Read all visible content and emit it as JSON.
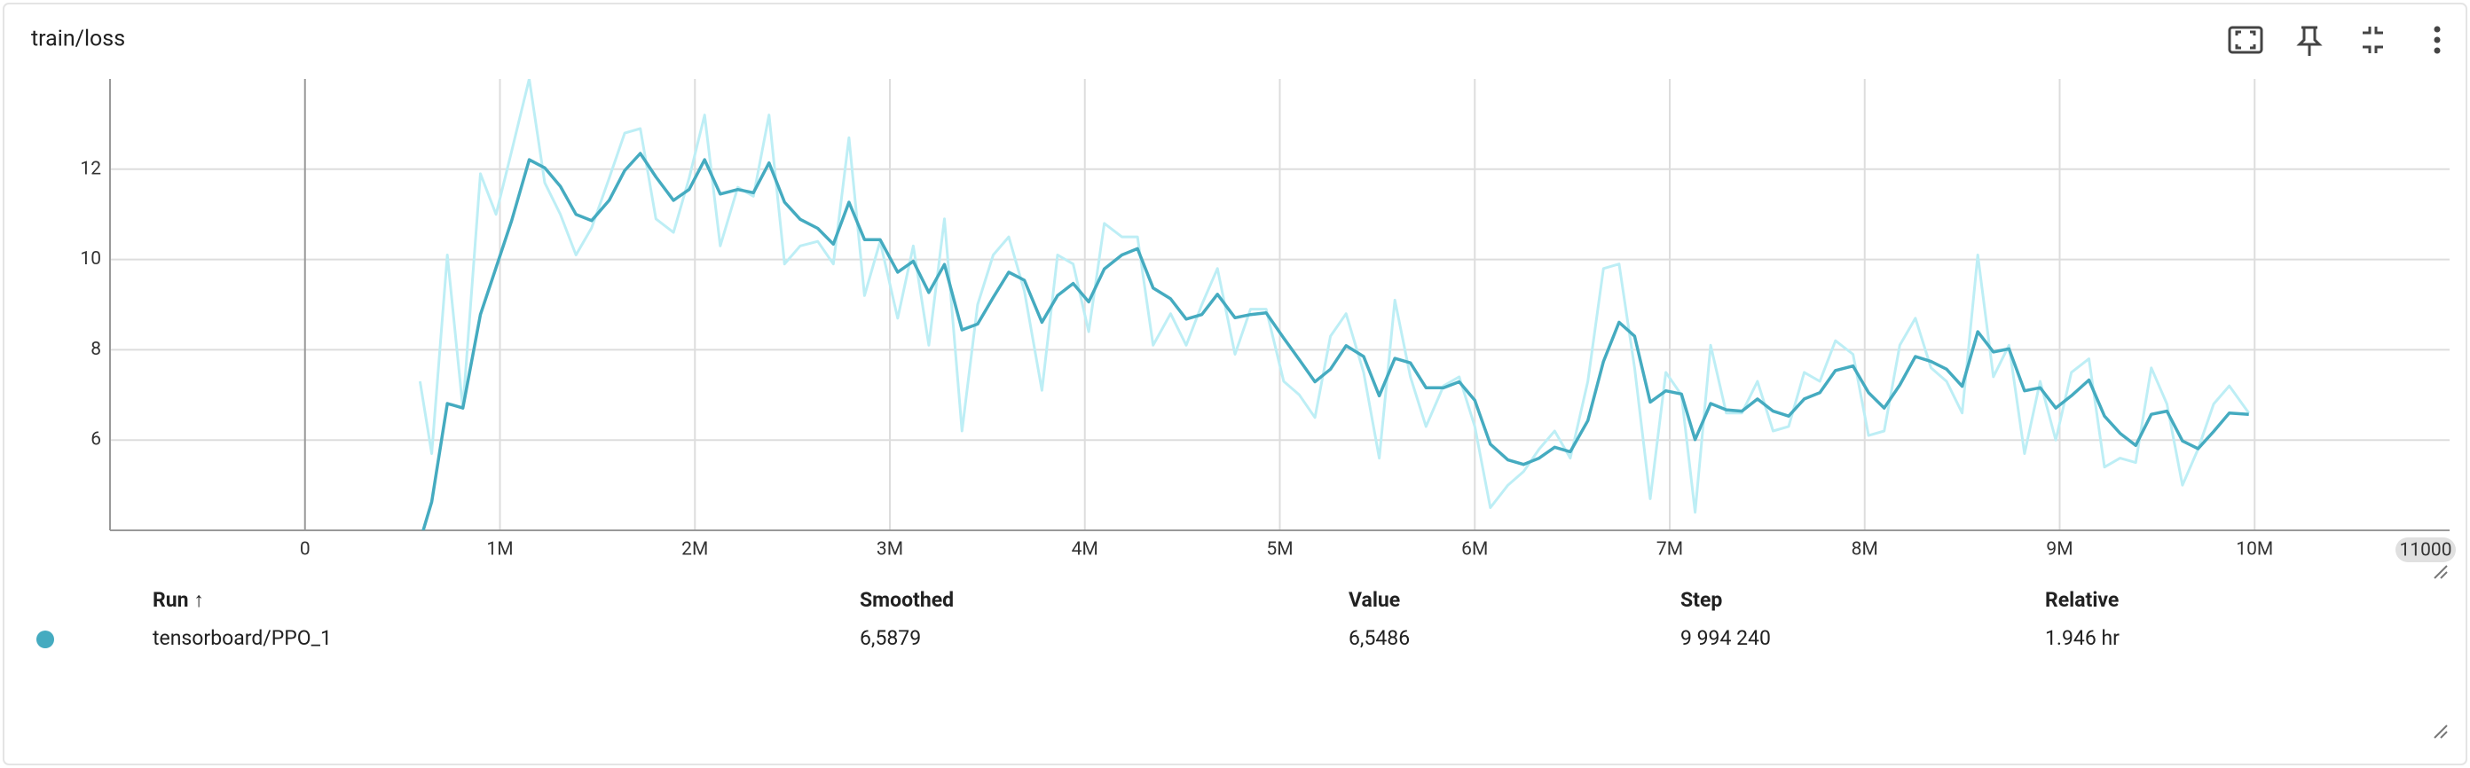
{
  "header": {
    "title": "train/loss"
  },
  "chart_data": {
    "type": "line",
    "x": [
      590000,
      650000,
      730000,
      810000,
      900000,
      980000,
      1060000,
      1150000,
      1230000,
      1310000,
      1390000,
      1470000,
      1560000,
      1640000,
      1720000,
      1800000,
      1890000,
      1970000,
      2050000,
      2130000,
      2220000,
      2300000,
      2380000,
      2460000,
      2540000,
      2630000,
      2710000,
      2790000,
      2870000,
      2950000,
      3040000,
      3120000,
      3200000,
      3280000,
      3370000,
      3450000,
      3530000,
      3610000,
      3690000,
      3780000,
      3860000,
      3940000,
      4020000,
      4100000,
      4190000,
      4270000,
      4350000,
      4440000,
      4520000,
      4600000,
      4680000,
      4770000,
      4850000,
      4930000,
      5020000,
      5100000,
      5180000,
      5260000,
      5340000,
      5430000,
      5510000,
      5590000,
      5670000,
      5750000,
      5840000,
      5920000,
      6000000,
      6080000,
      6170000,
      6250000,
      6330000,
      6410000,
      6490000,
      6580000,
      6660000,
      6740000,
      6820000,
      6900000,
      6980000,
      7060000,
      7130000,
      7210000,
      7290000,
      7370000,
      7450000,
      7530000,
      7610000,
      7690000,
      7770000,
      7850000,
      7940000,
      8020000,
      8100000,
      8180000,
      8260000,
      8340000,
      8420000,
      8500000,
      8580000,
      8660000,
      8740000,
      8820000,
      8900000,
      8980000,
      9060000,
      9150000,
      9230000,
      9310000,
      9390000,
      9470000,
      9550000,
      9630000,
      9710000,
      9790000,
      9870000,
      9970000
    ],
    "series": [
      {
        "color": "#bdeef5",
        "values": [
          7.3,
          5.7,
          10.1,
          6.7,
          11.9,
          11.0,
          12.4,
          14.0,
          11.7,
          11.0,
          10.1,
          10.7,
          11.8,
          12.8,
          12.9,
          10.9,
          10.6,
          11.8,
          13.2,
          10.3,
          11.6,
          11.4,
          13.2,
          9.9,
          10.3,
          10.4,
          9.9,
          12.7,
          9.2,
          10.4,
          8.7,
          10.3,
          8.1,
          10.9,
          6.2,
          9.0,
          10.1,
          10.5,
          9.3,
          7.1,
          10.1,
          9.9,
          8.4,
          10.8,
          10.5,
          10.5,
          8.1,
          8.8,
          8.1,
          9.0,
          9.8,
          7.9,
          8.9,
          8.9,
          7.3,
          7.0,
          6.5,
          8.3,
          8.8,
          7.5,
          5.6,
          9.1,
          7.4,
          6.3,
          7.2,
          7.4,
          6.3,
          4.5,
          5.0,
          5.3,
          5.8,
          6.2,
          5.6,
          7.3,
          9.8,
          9.9,
          7.6,
          4.7,
          7.5,
          7.0,
          4.4,
          8.1,
          6.6,
          6.6,
          7.3,
          6.2,
          6.3,
          7.5,
          7.3,
          8.2,
          7.9,
          6.1,
          6.2,
          8.1,
          8.7,
          7.6,
          7.3,
          6.6,
          10.1,
          7.4,
          8.1,
          5.7,
          7.3,
          6.0,
          7.5,
          7.8,
          5.4,
          5.6,
          5.5,
          7.6,
          6.8,
          5.0,
          5.8,
          6.8,
          7.2,
          6.6
        ]
      },
      {
        "color": "#45abc0",
        "values": [
          3.76,
          4.63,
          6.81,
          6.71,
          8.78,
          9.82,
          10.86,
          12.21,
          12.03,
          11.62,
          11.0,
          10.86,
          11.31,
          11.97,
          12.35,
          11.83,
          11.31,
          11.55,
          12.21,
          11.45,
          11.55,
          11.48,
          12.14,
          11.27,
          10.89,
          10.69,
          10.34,
          11.27,
          10.44,
          10.44,
          9.72,
          9.96,
          9.27,
          9.89,
          8.44,
          8.57,
          9.16,
          9.72,
          9.54,
          8.61,
          9.2,
          9.47,
          9.06,
          9.79,
          10.1,
          10.24,
          9.37,
          9.13,
          8.68,
          8.78,
          9.23,
          8.71,
          8.78,
          8.82,
          8.26,
          7.78,
          7.29,
          7.57,
          8.09,
          7.85,
          6.98,
          7.81,
          7.71,
          7.16,
          7.16,
          7.29,
          6.88,
          5.91,
          5.56,
          5.46,
          5.6,
          5.84,
          5.74,
          6.43,
          7.74,
          8.61,
          8.3,
          6.84,
          7.09,
          7.02,
          6.01,
          6.81,
          6.67,
          6.64,
          6.91,
          6.64,
          6.53,
          6.91,
          7.05,
          7.54,
          7.64,
          7.05,
          6.71,
          7.22,
          7.85,
          7.74,
          7.57,
          7.19,
          8.4,
          7.95,
          8.02,
          7.09,
          7.16,
          6.71,
          6.98,
          7.33,
          6.53,
          6.15,
          5.88,
          6.57,
          6.64,
          5.98,
          5.81,
          6.19,
          6.6,
          6.57
        ]
      }
    ],
    "xlim": [
      -1000000,
      11000000
    ],
    "xticks": [
      0,
      {
        "value": 1000000,
        "label": "1M"
      },
      {
        "value": 2000000,
        "label": "2M"
      },
      {
        "value": 3000000,
        "label": "3M"
      },
      {
        "value": 4000000,
        "label": "4M"
      },
      {
        "value": 5000000,
        "label": "5M"
      },
      {
        "value": 6000000,
        "label": "6M"
      },
      {
        "value": 7000000,
        "label": "7M"
      },
      {
        "value": 8000000,
        "label": "8M"
      },
      {
        "value": 9000000,
        "label": "9M"
      },
      {
        "value": 10000000,
        "label": "10M"
      }
    ],
    "ylim": [
      4,
      14
    ],
    "yticks": [
      6,
      8,
      10,
      12
    ],
    "grid": true,
    "axis_hover_label": "11000"
  },
  "table": {
    "columns": [
      "Run ↑",
      "Smoothed",
      "Value",
      "Step",
      "Relative"
    ],
    "rows": [
      [
        "tensorboard/PPO_1",
        "6,5879",
        "6,5486",
        "9 994 240",
        "1.946 hr"
      ]
    ]
  }
}
